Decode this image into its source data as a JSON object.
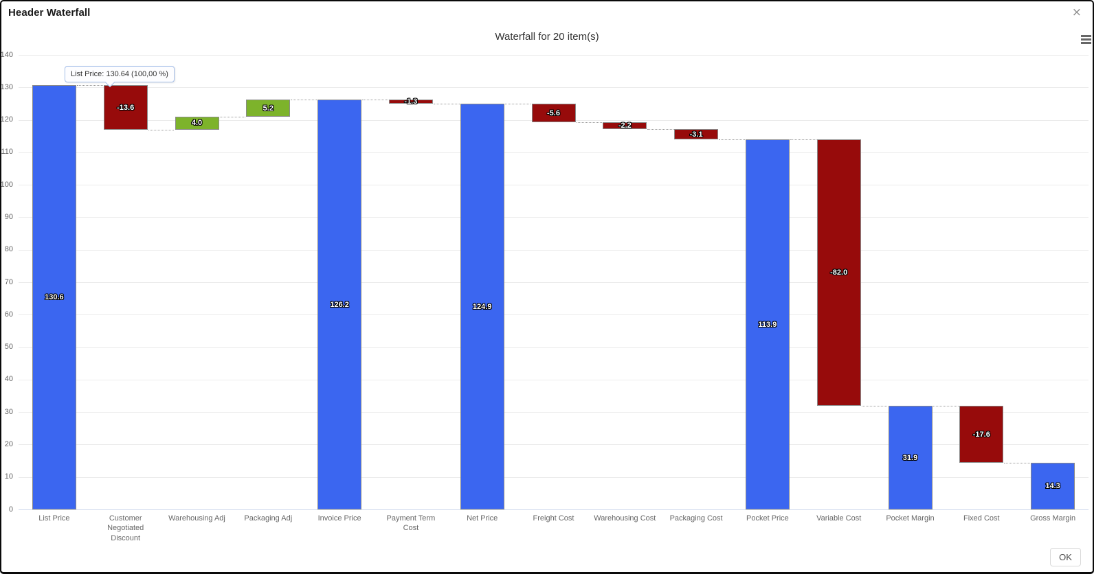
{
  "window": {
    "title": "Header Waterfall",
    "close_icon": "×"
  },
  "chart": {
    "tooltip": {
      "text": "List Price: 130.64 (100,00 %)"
    },
    "menu_icon": "hamburger-menu-icon",
    "ok_label": "OK"
  },
  "chart_data": {
    "type": "waterfall",
    "title": "Waterfall for 20 item(s)",
    "categories": [
      "List Price",
      "Customer Negotiated Discount",
      "Warehousing Adj",
      "Packaging Adj",
      "Invoice Price",
      "Payment Term Cost",
      "Net Price",
      "Freight Cost",
      "Warehousing Cost",
      "Packaging Cost",
      "Pocket Price",
      "Variable Cost",
      "Pocket Margin",
      "Fixed Cost",
      "Gross Margin"
    ],
    "points": [
      {
        "name": "List Price",
        "kind": "total",
        "value": 130.6,
        "label": "130.6"
      },
      {
        "name": "Customer Negotiated Discount",
        "kind": "delta",
        "value": -13.6,
        "label": "-13.6"
      },
      {
        "name": "Warehousing Adj",
        "kind": "delta",
        "value": 4.0,
        "label": "4.0"
      },
      {
        "name": "Packaging Adj",
        "kind": "delta",
        "value": 5.2,
        "label": "5.2"
      },
      {
        "name": "Invoice Price",
        "kind": "total",
        "value": 126.2,
        "label": "126.2"
      },
      {
        "name": "Payment Term Cost",
        "kind": "delta",
        "value": -1.3,
        "label": "-1.3"
      },
      {
        "name": "Net Price",
        "kind": "total",
        "value": 124.9,
        "label": "124.9"
      },
      {
        "name": "Freight Cost",
        "kind": "delta",
        "value": -5.6,
        "label": "-5.6"
      },
      {
        "name": "Warehousing Cost",
        "kind": "delta",
        "value": -2.2,
        "label": "-2.2"
      },
      {
        "name": "Packaging Cost",
        "kind": "delta",
        "value": -3.1,
        "label": "-3.1"
      },
      {
        "name": "Pocket Price",
        "kind": "total",
        "value": 113.9,
        "label": "113.9"
      },
      {
        "name": "Variable Cost",
        "kind": "delta",
        "value": -82.0,
        "label": "-82.0"
      },
      {
        "name": "Pocket Margin",
        "kind": "total",
        "value": 31.9,
        "label": "31.9"
      },
      {
        "name": "Fixed Cost",
        "kind": "delta",
        "value": -17.6,
        "label": "-17.6"
      },
      {
        "name": "Gross Margin",
        "kind": "total",
        "value": 14.3,
        "label": "14.3"
      }
    ],
    "ylim": [
      0,
      140
    ],
    "yticks": [
      0,
      10,
      20,
      30,
      40,
      50,
      60,
      70,
      80,
      90,
      100,
      110,
      120,
      130,
      140
    ],
    "grid": true,
    "legend": "none",
    "colors": {
      "total": "#3b66f0",
      "negative": "#970b0b",
      "positive": "#7db32b",
      "bar_border": "#8a8a8a",
      "gridline": "#ebebeb",
      "axis_line": "#ccd6eb",
      "tooltip_border": "#a5bfe9"
    }
  }
}
